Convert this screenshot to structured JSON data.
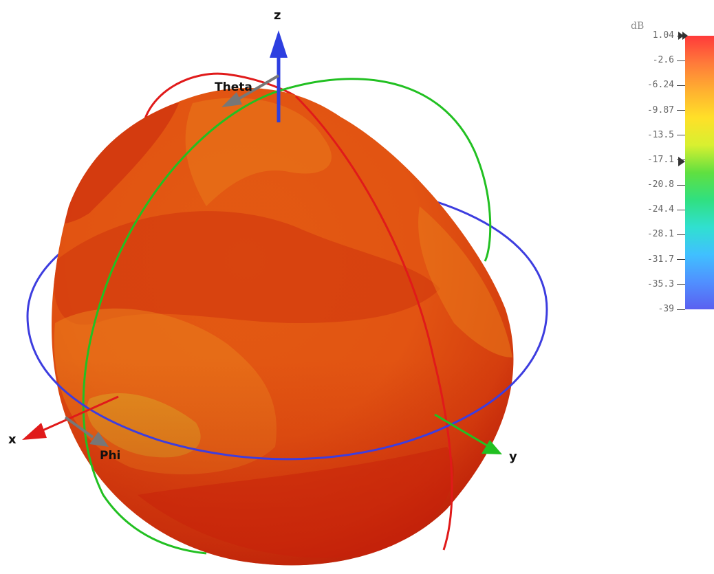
{
  "diagram": {
    "type": "3D radiation pattern",
    "axes": {
      "x": "x",
      "y": "y",
      "z": "z"
    },
    "angles": {
      "theta": "Theta",
      "phi": "Phi"
    },
    "axis_colors": {
      "x": "#e01a1a",
      "y": "#22c022",
      "z": "#2d3fe0"
    },
    "ring_colors": {
      "theta_ring": "#e01a1a",
      "phi_ring_green": "#22c022",
      "equator_ring": "#3d3ddf"
    },
    "surface_colors": [
      "#c81e0a",
      "#d8400e",
      "#e25a14",
      "#ea7a1a",
      "#ee951e",
      "#d9a022"
    ]
  },
  "legend": {
    "unit": "dB",
    "ticks": [
      "1.04",
      "-2.6",
      "-6.24",
      "-9.87",
      "-13.5",
      "-17.1",
      "-20.8",
      "-24.4",
      "-28.1",
      "-31.7",
      "-35.3",
      "-39"
    ],
    "colormap": [
      "#ff3a3a",
      "#ff7a3a",
      "#ffb030",
      "#ffe028",
      "#d8f030",
      "#60e040",
      "#30e080",
      "#30e0d0",
      "#40c0ff",
      "#5090ff",
      "#5a60f0"
    ],
    "markers": [
      "1.04",
      "-17.1"
    ]
  }
}
